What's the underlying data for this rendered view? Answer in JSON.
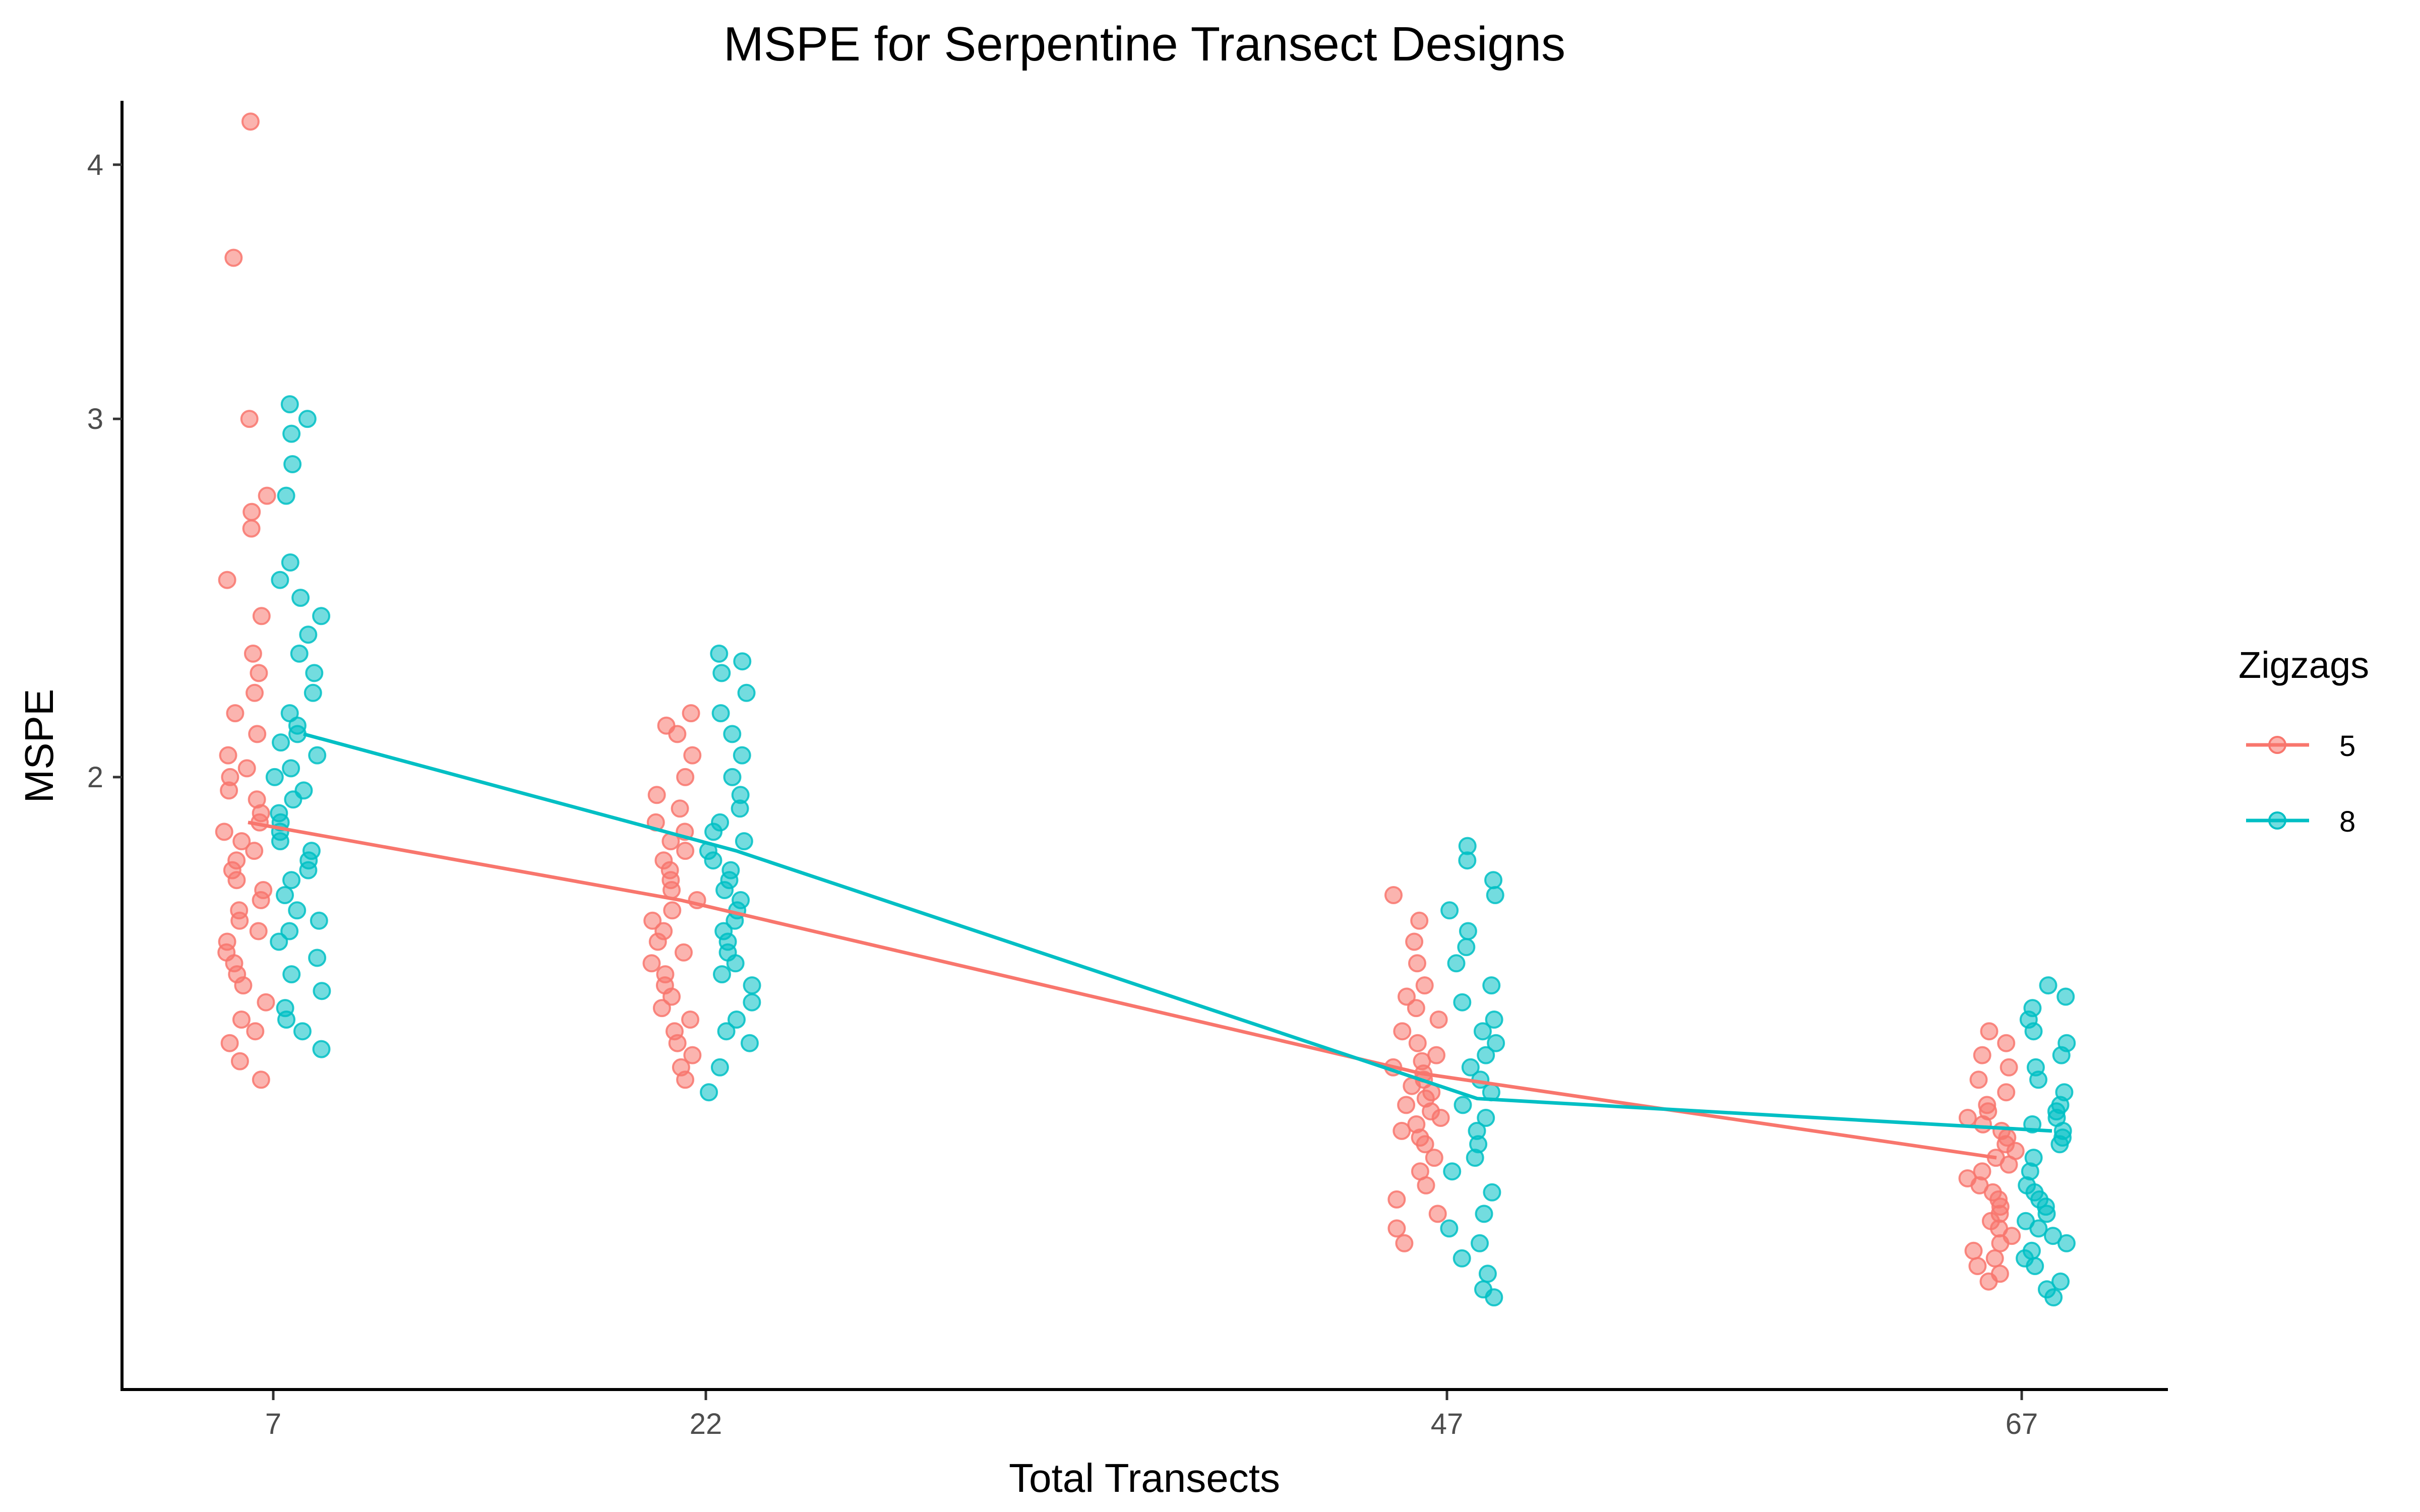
{
  "chart_data": {
    "type": "scatter",
    "title": "MSPE for Serpentine Transect Designs",
    "xlabel": "Total Transects",
    "ylabel": "MSPE",
    "categories": [
      "7",
      "22",
      "47",
      "67"
    ],
    "y_scale": "log",
    "ylim": [
      1.0,
      4.3
    ],
    "y_ticks": [
      "2",
      "3",
      "4"
    ],
    "grid": false,
    "legend_title": "Zigzags",
    "legend_position": "right",
    "series": [
      {
        "name": "5",
        "color": "#F8766D",
        "means": [
          1.9,
          1.74,
          1.43,
          1.3
        ],
        "points": [
          [
            4.2,
            3.6,
            3.0,
            2.75,
            2.7,
            2.65,
            2.5,
            2.4,
            2.3,
            2.25,
            2.2,
            2.15,
            2.1,
            2.05,
            2.02,
            2.0,
            1.97,
            1.95,
            1.92,
            1.9,
            1.88,
            1.86,
            1.84,
            1.82,
            1.8,
            1.78,
            1.76,
            1.74,
            1.72,
            1.7,
            1.68,
            1.66,
            1.64,
            1.62,
            1.6,
            1.58,
            1.55,
            1.52,
            1.5,
            1.48,
            1.45,
            1.42
          ],
          [
            2.15,
            2.12,
            2.1,
            2.05,
            2.0,
            1.96,
            1.93,
            1.9,
            1.88,
            1.86,
            1.84,
            1.82,
            1.8,
            1.78,
            1.76,
            1.74,
            1.72,
            1.7,
            1.68,
            1.66,
            1.64,
            1.62,
            1.6,
            1.58,
            1.56,
            1.54,
            1.52,
            1.5,
            1.48,
            1.46,
            1.44,
            1.42
          ],
          [
            1.75,
            1.7,
            1.66,
            1.62,
            1.58,
            1.56,
            1.54,
            1.52,
            1.5,
            1.48,
            1.46,
            1.45,
            1.44,
            1.43,
            1.42,
            1.41,
            1.4,
            1.39,
            1.38,
            1.37,
            1.36,
            1.35,
            1.34,
            1.33,
            1.32,
            1.3,
            1.28,
            1.26,
            1.24,
            1.22,
            1.2,
            1.18
          ],
          [
            1.5,
            1.48,
            1.46,
            1.44,
            1.42,
            1.4,
            1.38,
            1.37,
            1.36,
            1.35,
            1.34,
            1.33,
            1.32,
            1.31,
            1.3,
            1.29,
            1.28,
            1.27,
            1.26,
            1.25,
            1.24,
            1.23,
            1.22,
            1.21,
            1.2,
            1.19,
            1.18,
            1.17,
            1.16,
            1.15,
            1.14,
            1.13
          ]
        ]
      },
      {
        "name": "8",
        "color": "#00BFC4",
        "means": [
          2.1,
          1.84,
          1.39,
          1.34
        ],
        "points": [
          [
            3.05,
            3.0,
            2.95,
            2.85,
            2.75,
            2.55,
            2.5,
            2.45,
            2.4,
            2.35,
            2.3,
            2.25,
            2.2,
            2.15,
            2.12,
            2.1,
            2.08,
            2.05,
            2.02,
            2.0,
            1.97,
            1.95,
            1.92,
            1.9,
            1.88,
            1.86,
            1.84,
            1.82,
            1.8,
            1.78,
            1.75,
            1.72,
            1.7,
            1.68,
            1.66,
            1.63,
            1.6,
            1.57,
            1.54,
            1.52,
            1.5,
            1.47
          ],
          [
            2.3,
            2.28,
            2.25,
            2.2,
            2.15,
            2.1,
            2.05,
            2.0,
            1.96,
            1.93,
            1.9,
            1.88,
            1.86,
            1.84,
            1.82,
            1.8,
            1.78,
            1.76,
            1.74,
            1.72,
            1.7,
            1.68,
            1.66,
            1.64,
            1.62,
            1.6,
            1.58,
            1.55,
            1.52,
            1.5,
            1.48,
            1.44,
            1.4
          ],
          [
            1.85,
            1.82,
            1.78,
            1.75,
            1.72,
            1.68,
            1.65,
            1.62,
            1.58,
            1.55,
            1.52,
            1.5,
            1.48,
            1.46,
            1.44,
            1.42,
            1.4,
            1.38,
            1.36,
            1.34,
            1.32,
            1.3,
            1.28,
            1.25,
            1.22,
            1.2,
            1.18,
            1.16,
            1.14,
            1.12,
            1.11
          ],
          [
            1.58,
            1.56,
            1.54,
            1.52,
            1.5,
            1.48,
            1.46,
            1.44,
            1.42,
            1.4,
            1.38,
            1.37,
            1.36,
            1.35,
            1.34,
            1.33,
            1.32,
            1.3,
            1.28,
            1.26,
            1.25,
            1.24,
            1.23,
            1.22,
            1.21,
            1.2,
            1.19,
            1.18,
            1.17,
            1.16,
            1.15,
            1.13,
            1.12,
            1.11
          ]
        ]
      }
    ]
  }
}
